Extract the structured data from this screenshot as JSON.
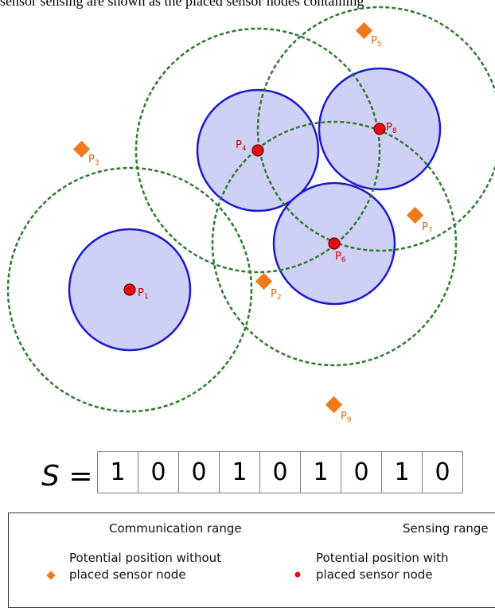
{
  "header_fragment": "sensor sensing are shown as the placed sensor nodes containing",
  "colors": {
    "sensing_fill": "#c7c8f5",
    "sensing_stroke": "#1a1acc",
    "comm_stroke": "#2f7a2f",
    "placed_node": "#e01010",
    "candidate": "#f07a1a",
    "label_red": "#cc0000",
    "label_orange": "#e06a10"
  },
  "positions": [
    {
      "id": "P1",
      "base": "P",
      "sub": "1",
      "placed": true
    },
    {
      "id": "P2",
      "base": "P",
      "sub": "2",
      "placed": false
    },
    {
      "id": "P3",
      "base": "P",
      "sub": "3",
      "placed": false
    },
    {
      "id": "P4",
      "base": "P",
      "sub": "4",
      "placed": true
    },
    {
      "id": "P5",
      "base": "P",
      "sub": "5",
      "placed": false
    },
    {
      "id": "P6",
      "base": "P",
      "sub": "6",
      "placed": true
    },
    {
      "id": "P7",
      "base": "P",
      "sub": "7",
      "placed": false
    },
    {
      "id": "P8",
      "base": "P",
      "sub": "8",
      "placed": true
    },
    {
      "id": "P9",
      "base": "P",
      "sub": "9",
      "placed": false
    }
  ],
  "sequence": {
    "label": "S",
    "equals": "=",
    "bits": [
      "1",
      "0",
      "0",
      "1",
      "0",
      "1",
      "0",
      "1",
      "0"
    ]
  },
  "legend": {
    "comm": "Communication range",
    "sensing": "Sensing range",
    "unplaced_line1": "Potential position without",
    "unplaced_line2": "placed sensor node",
    "placed_line1": "Potential position with",
    "placed_line2": "placed sensor node"
  }
}
